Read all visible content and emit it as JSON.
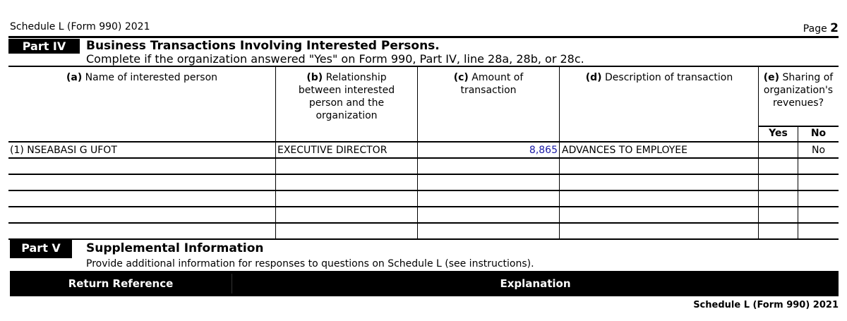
{
  "header": {
    "form_name": "Schedule L (Form 990) 2021",
    "page_label": "Page",
    "page_number": "2"
  },
  "part4": {
    "label": "Part IV",
    "title": "Business Transactions Involving Interested Persons.",
    "instruction": "Complete if the organization answered \"Yes\" on Form 990, Part IV, line 28a, 28b, or 28c.",
    "columns": {
      "a": {
        "letter": "(a)",
        "text": "Name of interested person"
      },
      "b": {
        "letter": "(b)",
        "text": "Relationship between interested person and the organization"
      },
      "c": {
        "letter": "(c)",
        "text": "Amount of transaction"
      },
      "d": {
        "letter": "(d)",
        "text": "Description of transaction"
      },
      "e": {
        "letter": "(e)",
        "text": "Sharing of organization's revenues?",
        "yes": "Yes",
        "no": "No"
      }
    },
    "rows": [
      {
        "name": "(1) NSEABASI G UFOT",
        "relationship": "EXECUTIVE DIRECTOR",
        "amount": "8,865",
        "description": "ADVANCES TO EMPLOYEE",
        "yes": "",
        "no": "No"
      }
    ],
    "amount_color": "#1a1aa6"
  },
  "part5": {
    "label": "Part V",
    "title": "Supplemental Information",
    "instruction": "Provide additional information for responses to questions on Schedule L (see instructions).",
    "table_headers": {
      "reference": "Return Reference",
      "explanation": "Explanation"
    }
  },
  "footer": {
    "form_name": "Schedule L (Form 990) 2021"
  }
}
